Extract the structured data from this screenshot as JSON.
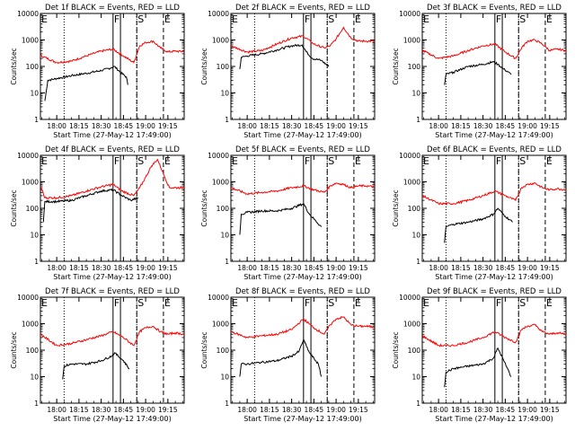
{
  "figure": {
    "xlabel": "Start Time (27-May-12 17:49:00)",
    "ylabel": "Counts/sec",
    "legend_text": "BLACK = Events, RED = LLD",
    "x_ticks": [
      "18:00",
      "18:15",
      "18:30",
      "18:45",
      "19:00",
      "19:15"
    ],
    "y_ticks": [
      "1",
      "10",
      "100",
      "1000",
      "10000"
    ],
    "colors": {
      "events": "#000000",
      "lld": "#ff0000",
      "axes": "#000000",
      "background": "#ffffff"
    }
  },
  "chart_data": [
    {
      "type": "line",
      "title": "Det 1f BLACK = Events, RED = LLD",
      "xlabel": "Start Time (27-May-12 17:49:00)",
      "ylabel": "Counts/sec",
      "y_scale": "log",
      "ylim": [
        1,
        10000
      ],
      "xlim": [
        "17:49",
        "19:26"
      ],
      "markers": {
        "E_left": "17:49",
        "F": "18:38",
        "S": "18:54",
        "E_right": "19:12"
      },
      "vlines_solid": [
        "18:38",
        "18:43"
      ],
      "vlines_dotted": [
        "18:05",
        "18:54"
      ],
      "vlines_dashed": [
        "18:54",
        "19:12"
      ],
      "series": [
        {
          "name": "Events",
          "x": [
            "17:52",
            "17:54",
            "18:00",
            "18:10",
            "18:20",
            "18:30",
            "18:37",
            "18:39",
            "18:43",
            "18:47",
            "18:48"
          ],
          "values": [
            5,
            30,
            35,
            45,
            55,
            70,
            90,
            100,
            60,
            40,
            20
          ]
        },
        {
          "name": "LLD",
          "x": [
            "17:49",
            "18:00",
            "18:10",
            "18:20",
            "18:30",
            "18:38",
            "18:45",
            "18:52",
            "18:56",
            "19:00",
            "19:05",
            "19:10",
            "19:15",
            "19:20",
            "19:26"
          ],
          "values": [
            260,
            140,
            160,
            250,
            380,
            450,
            250,
            140,
            600,
            800,
            900,
            500,
            350,
            380,
            360
          ]
        }
      ]
    },
    {
      "type": "line",
      "title": "Det 2f BLACK = Events, RED = LLD",
      "xlabel": "Start Time (27-May-12 17:49:00)",
      "ylabel": "Counts/sec",
      "y_scale": "log",
      "ylim": [
        1,
        10000
      ],
      "xlim": [
        "17:49",
        "19:26"
      ],
      "markers": {
        "E_left": "17:49",
        "F": "18:38",
        "S": "18:54",
        "E_right": "19:12"
      },
      "vlines_solid": [
        "18:38",
        "18:43"
      ],
      "vlines_dotted": [
        "18:05",
        "18:54"
      ],
      "vlines_dashed": [
        "18:54",
        "19:12"
      ],
      "series": [
        {
          "name": "Events",
          "x": [
            "17:55",
            "17:56",
            "18:00",
            "18:10",
            "18:20",
            "18:30",
            "18:37",
            "18:40",
            "18:44",
            "18:50",
            "18:55"
          ],
          "values": [
            80,
            220,
            250,
            300,
            420,
            600,
            650,
            350,
            200,
            170,
            100
          ]
        },
        {
          "name": "LLD",
          "x": [
            "17:49",
            "18:00",
            "18:10",
            "18:20",
            "18:30",
            "18:38",
            "18:45",
            "18:52",
            "18:56",
            "19:00",
            "19:05",
            "19:10",
            "19:15",
            "19:20",
            "19:26"
          ],
          "values": [
            600,
            350,
            400,
            700,
            1200,
            1400,
            700,
            500,
            600,
            1100,
            3000,
            1200,
            900,
            900,
            900
          ]
        }
      ]
    },
    {
      "type": "line",
      "title": "Det 3f BLACK = Events, RED = LLD",
      "xlabel": "Start Time (27-May-12 17:49:00)",
      "ylabel": "Counts/sec",
      "y_scale": "log",
      "ylim": [
        1,
        10000
      ],
      "xlim": [
        "17:49",
        "19:26"
      ],
      "markers": {
        "E_left": "17:49",
        "F": "18:38",
        "S": "18:54",
        "E_right": "19:12"
      },
      "vlines_solid": [
        "18:38",
        "18:43"
      ],
      "vlines_dotted": [
        "18:05",
        "18:54"
      ],
      "vlines_dashed": [
        "18:54",
        "19:12"
      ],
      "series": [
        {
          "name": "Events",
          "x": [
            "18:04",
            "18:05",
            "18:10",
            "18:20",
            "18:30",
            "18:37",
            "18:40",
            "18:44",
            "18:49"
          ],
          "values": [
            20,
            50,
            60,
            100,
            120,
            150,
            120,
            80,
            50
          ]
        },
        {
          "name": "LLD",
          "x": [
            "17:49",
            "18:00",
            "18:10",
            "18:20",
            "18:30",
            "18:38",
            "18:45",
            "18:52",
            "18:56",
            "19:00",
            "19:05",
            "19:10",
            "19:15",
            "19:20",
            "19:26"
          ],
          "values": [
            400,
            200,
            250,
            400,
            600,
            700,
            350,
            200,
            500,
            900,
            1000,
            700,
            400,
            450,
            400
          ]
        }
      ]
    },
    {
      "type": "line",
      "title": "Det 4f BLACK = Events, RED = LLD",
      "xlabel": "Start Time (27-May-12 17:49:00)",
      "ylabel": "Counts/sec",
      "y_scale": "log",
      "ylim": [
        1,
        10000
      ],
      "xlim": [
        "17:49",
        "19:26"
      ],
      "markers": {
        "E_left": "17:49",
        "F": "18:38",
        "S": "18:54",
        "E_right": "19:12"
      },
      "vlines_solid": [
        "18:38",
        "18:43"
      ],
      "vlines_dotted": [
        "18:05",
        "18:54"
      ],
      "vlines_dashed": [
        "18:54",
        "19:12"
      ],
      "series": [
        {
          "name": "Events",
          "x": [
            "17:51",
            "17:52",
            "18:00",
            "18:10",
            "18:20",
            "18:30",
            "18:38",
            "18:44",
            "18:50",
            "18:55"
          ],
          "values": [
            30,
            180,
            180,
            200,
            300,
            450,
            500,
            300,
            200,
            250
          ]
        },
        {
          "name": "LLD",
          "x": [
            "17:49",
            "17:52",
            "18:00",
            "18:10",
            "18:20",
            "18:30",
            "18:38",
            "18:44",
            "18:52",
            "18:56",
            "19:00",
            "19:04",
            "19:08",
            "19:12",
            "19:16",
            "19:26"
          ],
          "values": [
            700,
            250,
            250,
            300,
            450,
            650,
            800,
            450,
            300,
            600,
            1500,
            4000,
            7000,
            2000,
            600,
            600
          ]
        }
      ]
    },
    {
      "type": "line",
      "title": "Det 5f BLACK = Events, RED = LLD",
      "xlabel": "Start Time (27-May-12 17:49:00)",
      "ylabel": "Counts/sec",
      "y_scale": "log",
      "ylim": [
        1,
        10000
      ],
      "xlim": [
        "17:49",
        "19:26"
      ],
      "markers": {
        "E_left": "17:49",
        "F": "18:38",
        "S": "18:54",
        "E_right": "19:12"
      },
      "vlines_solid": [
        "18:38",
        "18:43"
      ],
      "vlines_dotted": [
        "18:05",
        "18:54"
      ],
      "vlines_dashed": [
        "18:54",
        "19:12"
      ],
      "series": [
        {
          "name": "Events",
          "x": [
            "17:55",
            "17:56",
            "18:00",
            "18:10",
            "18:20",
            "18:30",
            "18:38",
            "18:42",
            "18:45",
            "18:50"
          ],
          "values": [
            10,
            60,
            70,
            80,
            80,
            100,
            150,
            60,
            40,
            20
          ]
        },
        {
          "name": "LLD",
          "x": [
            "17:49",
            "18:00",
            "18:10",
            "18:20",
            "18:30",
            "18:38",
            "18:45",
            "18:52",
            "18:56",
            "19:00",
            "19:05",
            "19:10",
            "19:15",
            "19:20",
            "19:26"
          ],
          "values": [
            600,
            350,
            400,
            450,
            600,
            700,
            500,
            400,
            700,
            900,
            800,
            600,
            700,
            700,
            650
          ]
        }
      ]
    },
    {
      "type": "line",
      "title": "Det 6f BLACK = Events, RED = LLD",
      "xlabel": "Start Time (27-May-12 17:49:00)",
      "ylabel": "Counts/sec",
      "y_scale": "log",
      "ylim": [
        1,
        10000
      ],
      "xlim": [
        "17:49",
        "19:26"
      ],
      "markers": {
        "E_left": "17:49",
        "F": "18:38",
        "S": "18:54",
        "E_right": "19:12"
      },
      "vlines_solid": [
        "18:38",
        "18:43"
      ],
      "vlines_dotted": [
        "18:05",
        "18:54"
      ],
      "vlines_dashed": [
        "18:54",
        "19:12"
      ],
      "series": [
        {
          "name": "Events",
          "x": [
            "18:04",
            "18:05",
            "18:10",
            "18:20",
            "18:30",
            "18:37",
            "18:40",
            "18:45",
            "18:50"
          ],
          "values": [
            5,
            20,
            25,
            30,
            40,
            60,
            100,
            50,
            30
          ]
        },
        {
          "name": "LLD",
          "x": [
            "17:49",
            "18:00",
            "18:10",
            "18:20",
            "18:30",
            "18:38",
            "18:45",
            "18:52",
            "18:56",
            "19:00",
            "19:05",
            "19:10",
            "19:15",
            "19:20",
            "19:26"
          ],
          "values": [
            300,
            150,
            150,
            200,
            300,
            450,
            300,
            200,
            600,
            800,
            900,
            600,
            500,
            550,
            500
          ]
        }
      ]
    },
    {
      "type": "line",
      "title": "Det 7f BLACK = Events, RED = LLD",
      "xlabel": "Start Time (27-May-12 17:49:00)",
      "ylabel": "Counts/sec",
      "y_scale": "log",
      "ylim": [
        1,
        10000
      ],
      "xlim": [
        "17:49",
        "19:26"
      ],
      "markers": {
        "E_left": "17:49",
        "F": "18:38",
        "S": "18:54",
        "E_right": "19:12"
      },
      "vlines_solid": [
        "18:38",
        "18:43"
      ],
      "vlines_dotted": [
        "18:05",
        "18:54"
      ],
      "vlines_dashed": [
        "18:54",
        "19:12"
      ],
      "series": [
        {
          "name": "Events",
          "x": [
            "18:04",
            "18:05",
            "18:10",
            "18:20",
            "18:30",
            "18:37",
            "18:39",
            "18:45",
            "18:49"
          ],
          "values": [
            8,
            25,
            30,
            30,
            40,
            60,
            80,
            40,
            20
          ]
        },
        {
          "name": "LLD",
          "x": [
            "17:49",
            "18:00",
            "18:10",
            "18:20",
            "18:30",
            "18:38",
            "18:45",
            "18:52",
            "18:56",
            "19:00",
            "19:05",
            "19:10",
            "19:15",
            "19:20",
            "19:26"
          ],
          "values": [
            400,
            150,
            180,
            250,
            350,
            500,
            300,
            150,
            500,
            700,
            800,
            500,
            400,
            450,
            400
          ]
        }
      ]
    },
    {
      "type": "line",
      "title": "Det 8f BLACK = Events, RED = LLD",
      "xlabel": "Start Time (27-May-12 17:49:00)",
      "ylabel": "Counts/sec",
      "y_scale": "log",
      "ylim": [
        1,
        10000
      ],
      "xlim": [
        "17:49",
        "19:26"
      ],
      "markers": {
        "E_left": "17:49",
        "F": "18:38",
        "S": "18:54",
        "E_right": "19:12"
      },
      "vlines_solid": [
        "18:38",
        "18:43"
      ],
      "vlines_dotted": [
        "18:05",
        "18:54"
      ],
      "vlines_dashed": [
        "18:54",
        "19:12"
      ],
      "series": [
        {
          "name": "Events",
          "x": [
            "17:55",
            "17:56",
            "18:00",
            "18:10",
            "18:20",
            "18:30",
            "18:35",
            "18:38",
            "18:42",
            "18:48",
            "18:50"
          ],
          "values": [
            10,
            30,
            30,
            35,
            40,
            60,
            90,
            250,
            80,
            30,
            10
          ]
        },
        {
          "name": "LLD",
          "x": [
            "17:49",
            "18:00",
            "18:10",
            "18:20",
            "18:30",
            "18:38",
            "18:45",
            "18:52",
            "18:56",
            "19:00",
            "19:05",
            "19:10",
            "19:15",
            "19:20",
            "19:26"
          ],
          "values": [
            500,
            300,
            350,
            400,
            600,
            1500,
            700,
            400,
            900,
            1500,
            1800,
            900,
            800,
            800,
            750
          ]
        }
      ]
    },
    {
      "type": "line",
      "title": "Det 9f BLACK = Events, RED = LLD",
      "xlabel": "Start Time (27-May-12 17:49:00)",
      "ylabel": "Counts/sec",
      "y_scale": "log",
      "ylim": [
        1,
        10000
      ],
      "xlim": [
        "17:49",
        "19:26"
      ],
      "markers": {
        "E_left": "17:49",
        "F": "18:38",
        "S": "18:54",
        "E_right": "19:12"
      },
      "vlines_solid": [
        "18:38",
        "18:43"
      ],
      "vlines_dotted": [
        "18:05",
        "18:54"
      ],
      "vlines_dashed": [
        "18:54",
        "19:12"
      ],
      "series": [
        {
          "name": "Events",
          "x": [
            "18:04",
            "18:05",
            "18:10",
            "18:20",
            "18:30",
            "18:37",
            "18:40",
            "18:44",
            "18:49"
          ],
          "values": [
            4,
            15,
            20,
            25,
            30,
            50,
            120,
            40,
            10
          ]
        },
        {
          "name": "LLD",
          "x": [
            "17:49",
            "18:00",
            "18:10",
            "18:20",
            "18:30",
            "18:38",
            "18:45",
            "18:52",
            "18:56",
            "19:00",
            "19:05",
            "19:10",
            "19:15",
            "19:20",
            "19:26"
          ],
          "values": [
            350,
            150,
            150,
            200,
            300,
            500,
            300,
            200,
            600,
            800,
            900,
            500,
            400,
            450,
            400
          ]
        }
      ]
    }
  ]
}
